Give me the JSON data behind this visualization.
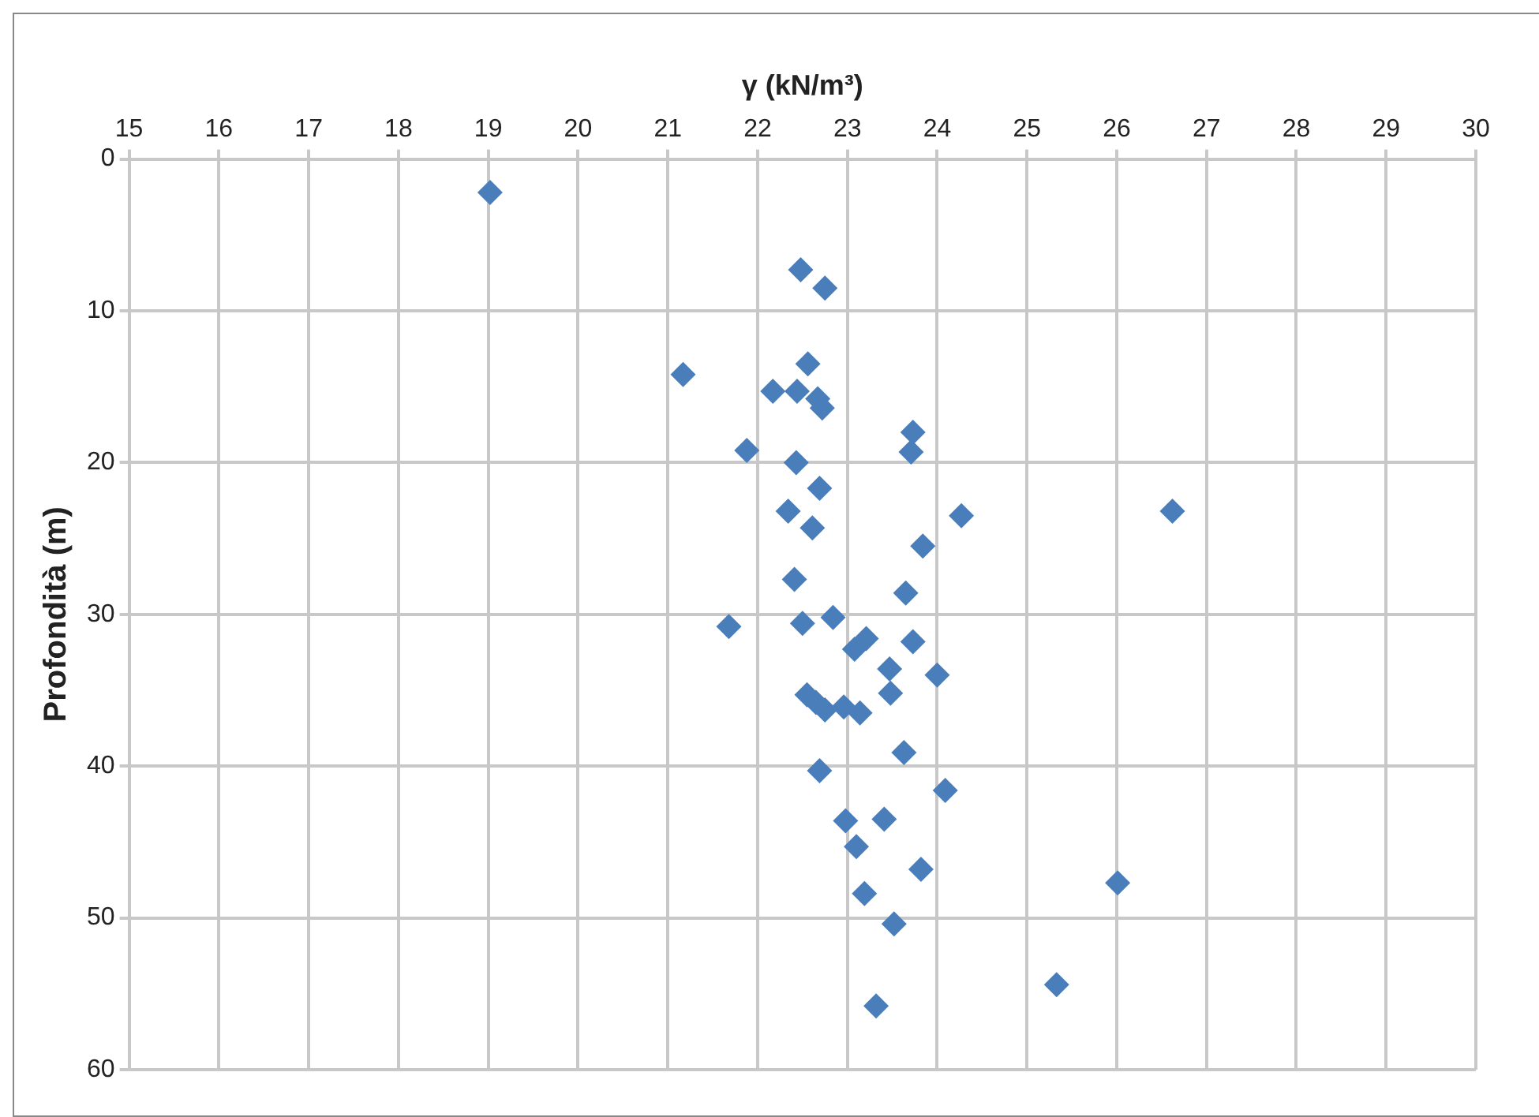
{
  "chart_data": {
    "type": "scatter",
    "xlabel": "γ (kN/m³)",
    "ylabel": "Profondità (m)",
    "x": [
      19.02,
      22.48,
      22.75,
      22.56,
      21.17,
      22.17,
      22.44,
      22.67,
      22.72,
      23.73,
      23.71,
      21.88,
      22.43,
      22.69,
      22.34,
      22.61,
      24.27,
      26.62,
      23.84,
      22.41,
      23.65,
      21.68,
      22.5,
      22.84,
      23.21,
      23.08,
      23.73,
      23.47,
      24.0,
      23.48,
      22.55,
      22.65,
      22.75,
      22.96,
      23.14,
      23.63,
      22.69,
      24.09,
      22.98,
      23.41,
      23.1,
      23.82,
      26.01,
      23.19,
      23.52,
      25.33,
      23.32
    ],
    "series": [
      {
        "color": "#4a7ebb",
        "values": [
          2.2,
          7.3,
          8.5,
          13.5,
          14.2,
          15.3,
          15.3,
          15.8,
          16.4,
          18.0,
          19.3,
          19.2,
          20.0,
          21.7,
          23.2,
          24.3,
          23.5,
          23.2,
          25.5,
          27.7,
          28.6,
          30.8,
          30.6,
          30.2,
          31.6,
          32.3,
          31.8,
          33.6,
          34.0,
          35.2,
          35.3,
          35.8,
          36.3,
          36.1,
          36.5,
          39.1,
          40.3,
          41.6,
          43.6,
          43.5,
          45.3,
          46.8,
          47.7,
          48.4,
          50.4,
          54.4,
          55.8
        ]
      }
    ],
    "xlim": [
      15,
      30
    ],
    "xticks": [
      15,
      16,
      17,
      18,
      19,
      20,
      21,
      22,
      23,
      24,
      25,
      26,
      27,
      28,
      29,
      30
    ],
    "ylim": [
      60,
      0
    ],
    "yticks": [
      0,
      10,
      20,
      30,
      40,
      50,
      60
    ],
    "grid": true,
    "legend": false,
    "marker": "diamond"
  }
}
